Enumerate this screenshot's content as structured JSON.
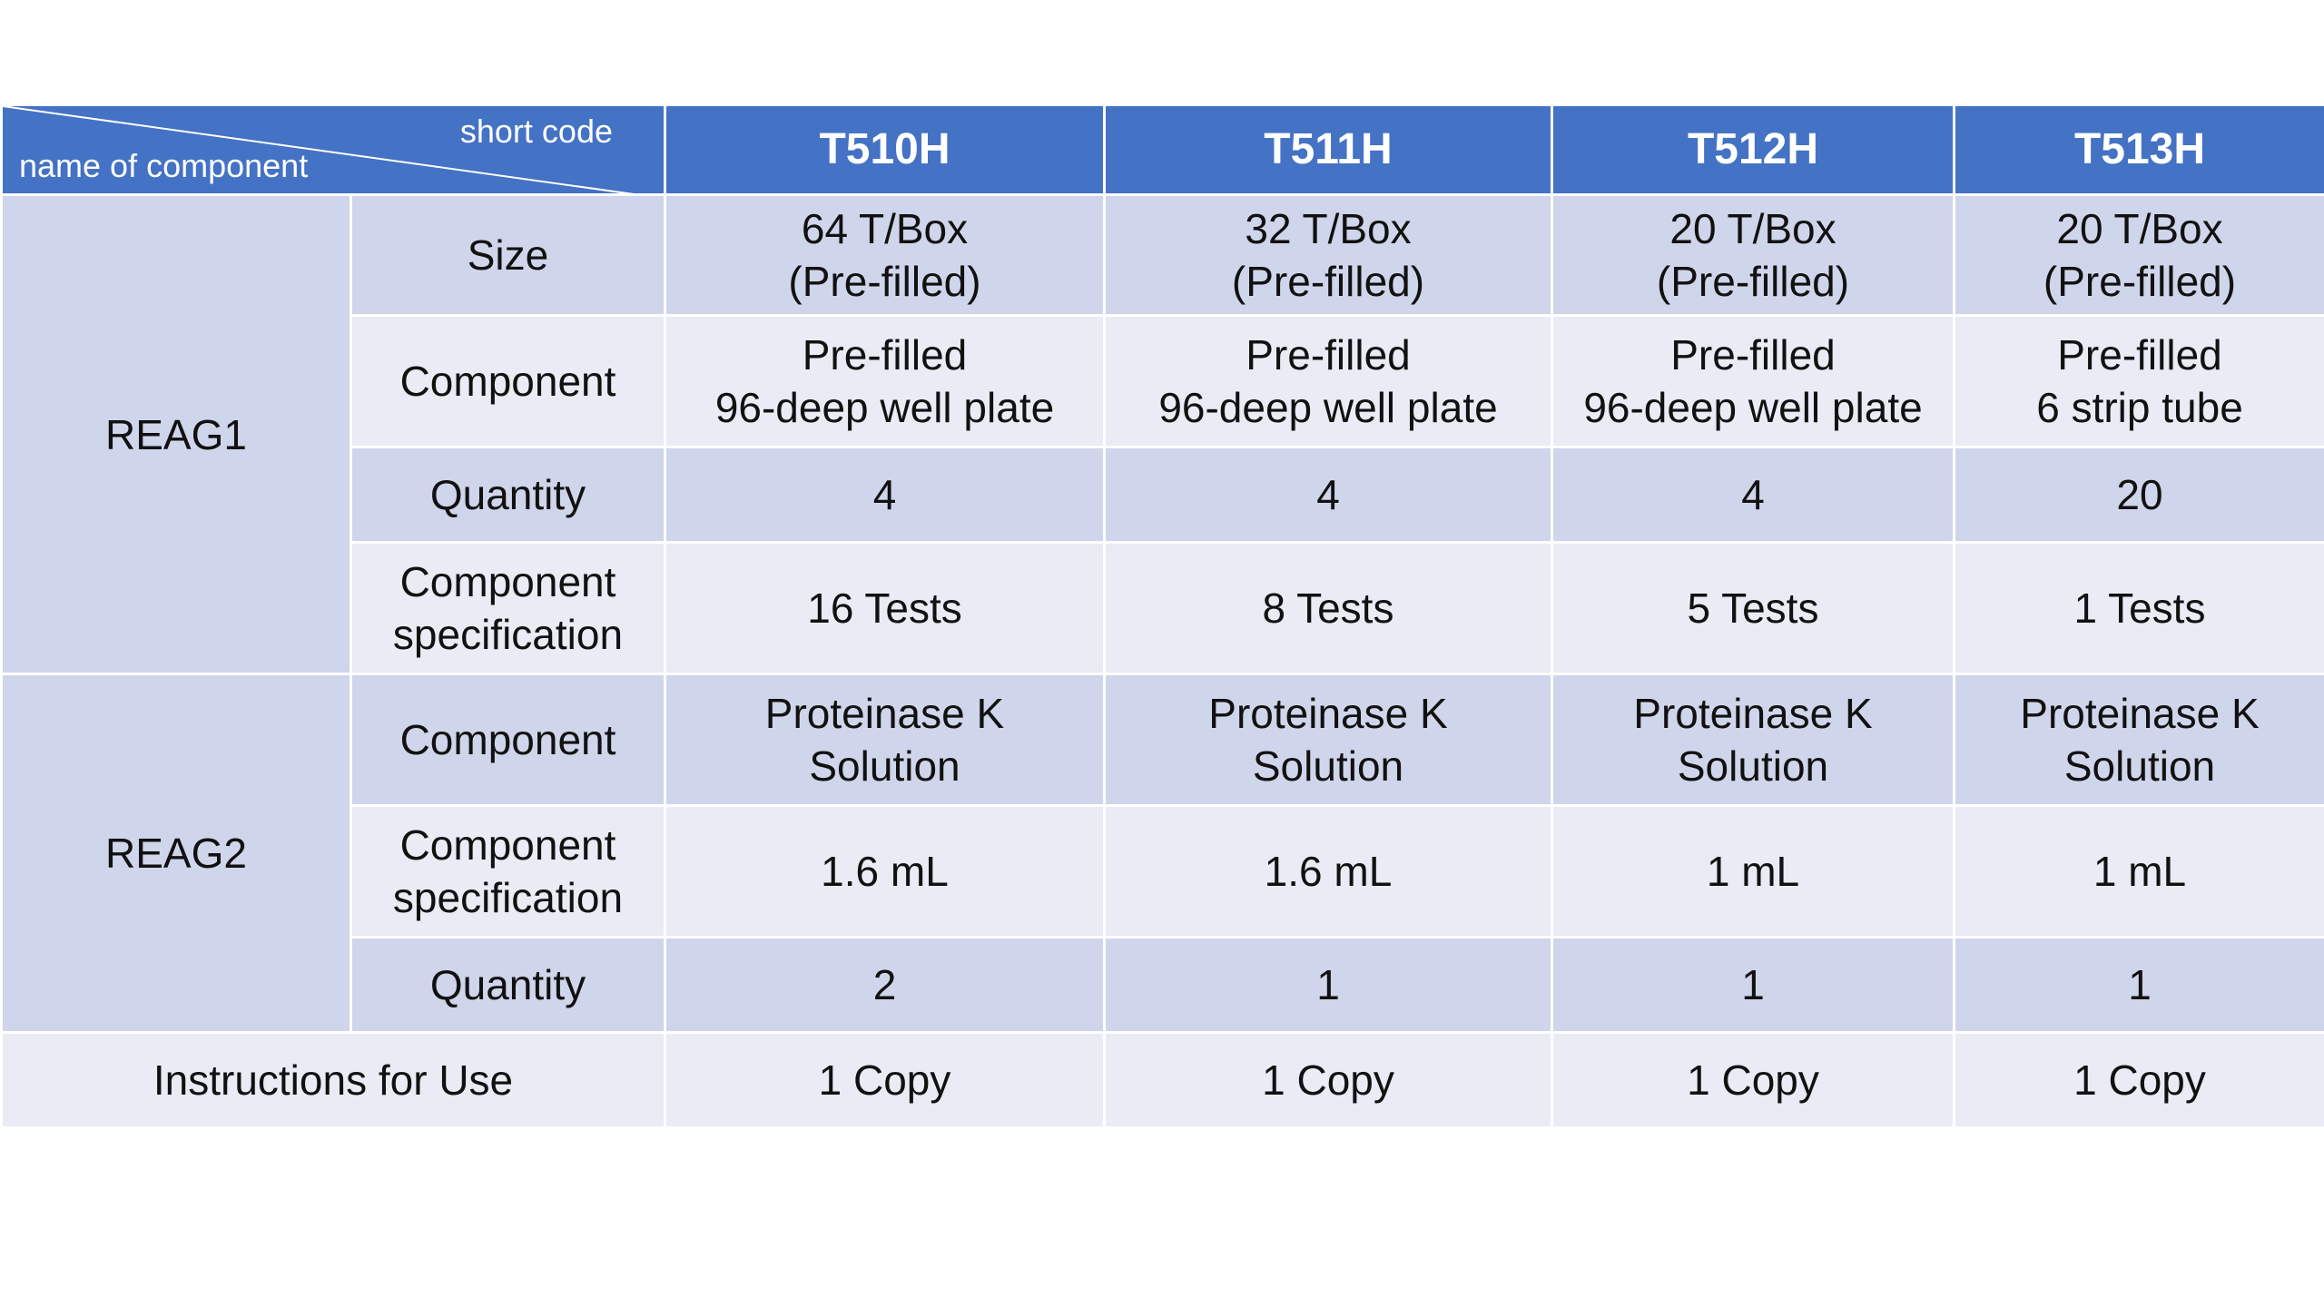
{
  "header": {
    "short_code_label": "short code",
    "name_label": "name of component",
    "codes": [
      "T510H",
      "T511H",
      "T512H",
      "T513H"
    ]
  },
  "reag1": {
    "name": "REAG1",
    "size": {
      "label": "Size",
      "values": [
        [
          "64 T/Box",
          "(Pre-filled)"
        ],
        [
          "32 T/Box",
          "(Pre-filled)"
        ],
        [
          "20 T/Box",
          "(Pre-filled)"
        ],
        [
          "20 T/Box",
          "(Pre-filled)"
        ]
      ]
    },
    "component": {
      "label": "Component",
      "values": [
        [
          "Pre-filled",
          "96-deep well plate"
        ],
        [
          "Pre-filled",
          "96-deep well plate"
        ],
        [
          "Pre-filled",
          "96-deep well plate"
        ],
        [
          "Pre-filled",
          "6 strip tube"
        ]
      ]
    },
    "quantity": {
      "label": "Quantity",
      "values": [
        "4",
        "4",
        "4",
        "20"
      ]
    },
    "specification": {
      "label": [
        "Component",
        "specification"
      ],
      "values": [
        "16 Tests",
        "8 Tests",
        "5 Tests",
        "1 Tests"
      ]
    }
  },
  "reag2": {
    "name": "REAG2",
    "component": {
      "label": "Component",
      "values": [
        [
          "Proteinase K",
          "Solution"
        ],
        [
          "Proteinase K",
          "Solution"
        ],
        [
          "Proteinase K",
          "Solution"
        ],
        [
          "Proteinase K",
          "Solution"
        ]
      ]
    },
    "specification": {
      "label": [
        "Component",
        "specification"
      ],
      "values": [
        "1.6 mL",
        "1.6 mL",
        "1 mL",
        "1 mL"
      ]
    },
    "quantity": {
      "label": "Quantity",
      "values": [
        "2",
        "1",
        "1",
        "1"
      ]
    }
  },
  "ifu": {
    "label": "Instructions for Use",
    "values": [
      "1 Copy",
      "1 Copy",
      "1 Copy",
      "1 Copy"
    ]
  },
  "colors": {
    "header": "#4472c4",
    "band_dark": "#cfd5ea",
    "band_light": "#e9ebf5"
  }
}
